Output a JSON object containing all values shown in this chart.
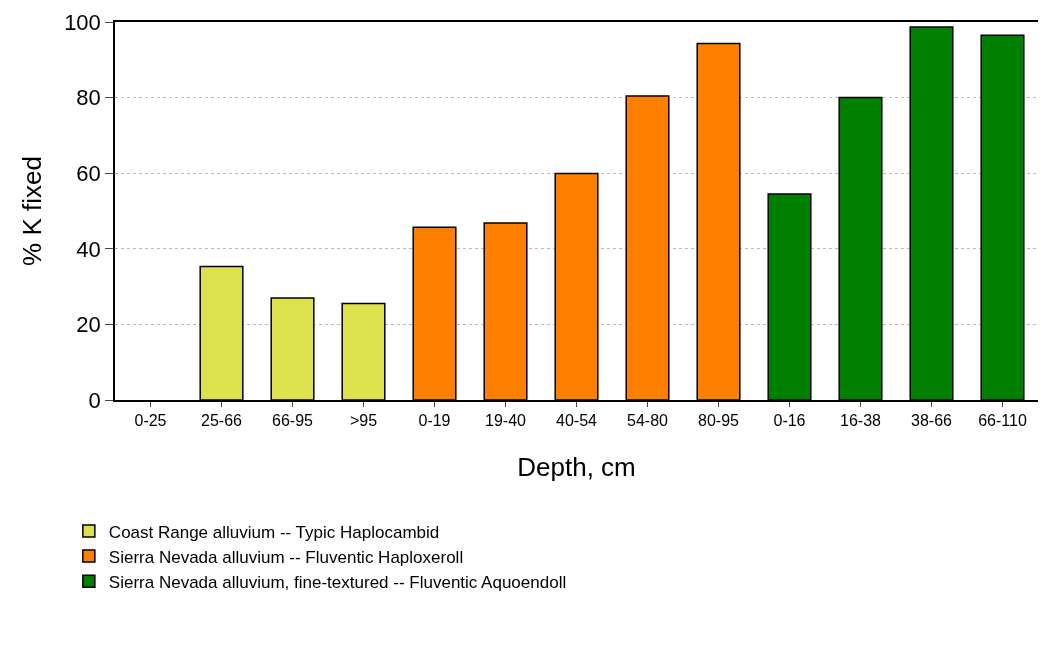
{
  "chart_data": {
    "type": "bar",
    "xlabel": "Depth, cm",
    "ylabel": "% K fixed",
    "categories": [
      "0-25",
      "25-66",
      "66-95",
      ">95",
      "0-19",
      "19-40",
      "40-54",
      "54-80",
      "80-95",
      "0-16",
      "16-38",
      "38-66",
      "66-110"
    ],
    "series": [
      {
        "name": "Coast Range alluvium -- Typic Haplocambid",
        "color": "#dbe24d",
        "values": [
          null,
          35.3,
          27.0,
          25.5,
          null,
          null,
          null,
          null,
          null,
          null,
          null,
          null,
          null
        ]
      },
      {
        "name": "Sierra Nevada alluvium -- Fluventic Haploxeroll",
        "color": "#ff8000",
        "values": [
          null,
          null,
          null,
          null,
          45.7,
          46.8,
          59.9,
          80.4,
          94.3,
          null,
          null,
          null,
          null
        ]
      },
      {
        "name": "Sierra Nevada alluvium, fine-textured -- Fluventic Aquoendoll",
        "color": "#008000",
        "values": [
          null,
          null,
          null,
          null,
          null,
          null,
          null,
          null,
          null,
          54.5,
          80.0,
          98.7,
          96.5
        ]
      }
    ],
    "ylim": [
      0,
      100
    ],
    "yticks": [
      0,
      20,
      40,
      60,
      80,
      100
    ],
    "grid": "y",
    "legend": "bottom left"
  }
}
